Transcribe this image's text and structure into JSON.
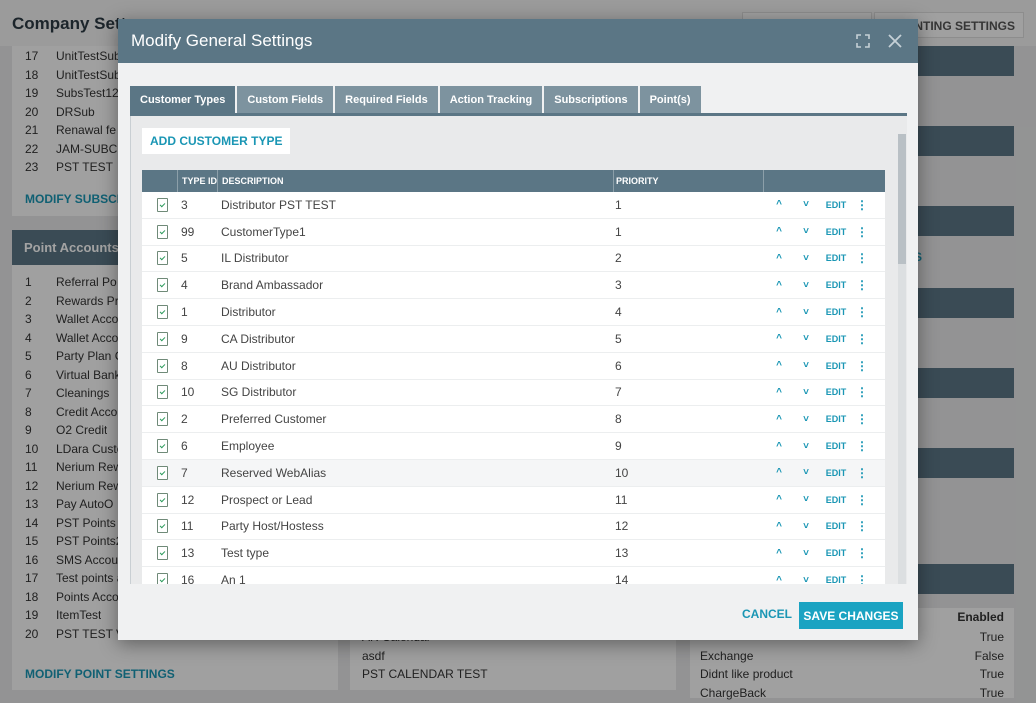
{
  "background": {
    "title": "Company Sett",
    "right_tab": "UNTING SETTINGS",
    "subscriptions": {
      "rows": [
        {
          "n": "17",
          "t": "UnitTestSub"
        },
        {
          "n": "18",
          "t": "UnitTestSub"
        },
        {
          "n": "19",
          "t": "SubsTest12"
        },
        {
          "n": "20",
          "t": "DRSub"
        },
        {
          "n": "21",
          "t": "Renawal fe"
        },
        {
          "n": "22",
          "t": "JAM-SUBC"
        },
        {
          "n": "23",
          "t": "PST TEST"
        }
      ],
      "link": "MODIFY SUBSCR"
    },
    "point_accounts": {
      "title": "Point Accounts",
      "rows": [
        {
          "n": "1",
          "t": "Referral Po"
        },
        {
          "n": "2",
          "t": "Rewards Pr"
        },
        {
          "n": "3",
          "t": "Wallet Acco"
        },
        {
          "n": "4",
          "t": "Wallet Acco"
        },
        {
          "n": "5",
          "t": "Party Plan C"
        },
        {
          "n": "6",
          "t": "Virtual Bank"
        },
        {
          "n": "7",
          "t": "Cleanings"
        },
        {
          "n": "8",
          "t": "Credit Acco"
        },
        {
          "n": "9",
          "t": "O2 Credit"
        },
        {
          "n": "10",
          "t": "LDara Custo"
        },
        {
          "n": "11",
          "t": "Nerium Rew"
        },
        {
          "n": "12",
          "t": "Nerium Rew"
        },
        {
          "n": "13",
          "t": "Pay AutoO"
        },
        {
          "n": "14",
          "t": "PST Points"
        },
        {
          "n": "15",
          "t": "PST Points2"
        },
        {
          "n": "16",
          "t": "SMS Accou"
        },
        {
          "n": "17",
          "t": "Test points a"
        },
        {
          "n": "18",
          "t": "Points Acco"
        },
        {
          "n": "19",
          "t": "ItemTest"
        },
        {
          "n": "20",
          "t": "PST TEST V"
        }
      ],
      "link": "MODIFY POINT SETTINGS"
    },
    "calendar": {
      "rows": [
        "AR Calendar",
        "asdf",
        "PST CALENDAR TEST"
      ]
    },
    "right_panel": {
      "link_fragment": "S",
      "header": "Enabled",
      "rows": [
        {
          "k": "",
          "v": "True"
        },
        {
          "k": "Exchange",
          "v": "False"
        },
        {
          "k": "Didnt like product",
          "v": "True"
        },
        {
          "k": "ChargeBack",
          "v": "True"
        }
      ]
    }
  },
  "modal": {
    "title": "Modify General Settings",
    "tabs": [
      "Customer Types",
      "Custom Fields",
      "Required Fields",
      "Action Tracking",
      "Subscriptions",
      "Point(s)"
    ],
    "add_button": "ADD CUSTOMER TYPE",
    "columns": {
      "type_id": "TYPE ID",
      "description": "DESCRIPTION",
      "priority": "PRIORITY"
    },
    "row_actions": {
      "up": "^",
      "down": "˅",
      "edit": "EDIT",
      "more": "⋮"
    },
    "rows": [
      {
        "id": "3",
        "desc": "Distributor PST TEST",
        "priority": "1"
      },
      {
        "id": "99",
        "desc": "CustomerType1",
        "priority": "1"
      },
      {
        "id": "5",
        "desc": "IL Distributor",
        "priority": "2"
      },
      {
        "id": "4",
        "desc": "Brand Ambassador",
        "priority": "3"
      },
      {
        "id": "1",
        "desc": "Distributor",
        "priority": "4"
      },
      {
        "id": "9",
        "desc": "CA Distributor",
        "priority": "5"
      },
      {
        "id": "8",
        "desc": "AU Distributor",
        "priority": "6"
      },
      {
        "id": "10",
        "desc": "SG Distributor",
        "priority": "7"
      },
      {
        "id": "2",
        "desc": "Preferred Customer",
        "priority": "8"
      },
      {
        "id": "6",
        "desc": "Employee",
        "priority": "9"
      },
      {
        "id": "7",
        "desc": "Reserved WebAlias",
        "priority": "10"
      },
      {
        "id": "12",
        "desc": "Prospect or Lead",
        "priority": "11"
      },
      {
        "id": "11",
        "desc": "Party Host/Hostess",
        "priority": "12"
      },
      {
        "id": "13",
        "desc": "Test type",
        "priority": "13"
      },
      {
        "id": "16",
        "desc": "An 1",
        "priority": "14"
      }
    ],
    "cancel": "CANCEL",
    "save": "SAVE CHANGES"
  }
}
